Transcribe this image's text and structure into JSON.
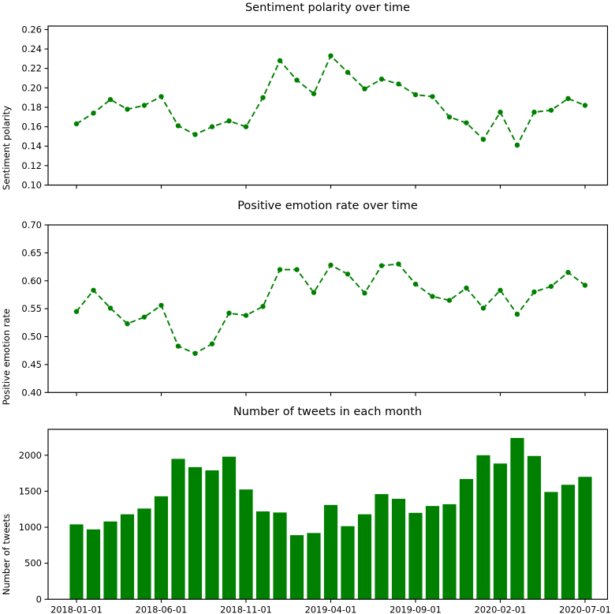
{
  "colors": {
    "series": "#008000",
    "axis": "#000000",
    "text": "#000000"
  },
  "months": [
    "2018-01",
    "2018-02",
    "2018-03",
    "2018-04",
    "2018-05",
    "2018-06",
    "2018-07",
    "2018-08",
    "2018-09",
    "2018-10",
    "2018-11",
    "2018-12",
    "2019-01",
    "2019-02",
    "2019-03",
    "2019-04",
    "2019-05",
    "2019-06",
    "2019-07",
    "2019-08",
    "2019-09",
    "2019-10",
    "2019-11",
    "2019-12",
    "2020-01",
    "2020-02",
    "2020-03",
    "2020-04",
    "2020-05",
    "2020-06",
    "2020-07"
  ],
  "x_ticks": {
    "positions": [
      0,
      5,
      10,
      15,
      20,
      25,
      30
    ],
    "labels": [
      "2018-01-01",
      "2018-06-01",
      "2018-11-01",
      "2019-04-01",
      "2019-09-01",
      "2020-02-01",
      "2020-07-01"
    ]
  },
  "chart_data": [
    {
      "type": "line",
      "title": "Sentiment polarity over time",
      "ylabel": "Sentiment polarity",
      "line_style": "dashed",
      "marker": "circle",
      "color": "#008000",
      "ylim": [
        0.1,
        0.2636
      ],
      "ytick_values": [
        0.1,
        0.12,
        0.14,
        0.16,
        0.18,
        0.2,
        0.22,
        0.24,
        0.26
      ],
      "ytick_labels": [
        "0.10",
        "0.12",
        "0.14",
        "0.16",
        "0.18",
        "0.20",
        "0.22",
        "0.24",
        "0.26"
      ],
      "x_labels_visible": false,
      "values": [
        0.163,
        0.174,
        0.188,
        0.178,
        0.182,
        0.191,
        0.161,
        0.152,
        0.16,
        0.166,
        0.16,
        0.19,
        0.228,
        0.208,
        0.194,
        0.233,
        0.216,
        0.199,
        0.209,
        0.204,
        0.193,
        0.191,
        0.17,
        0.164,
        0.147,
        0.175,
        0.141,
        0.175,
        0.177,
        0.189,
        0.182
      ]
    },
    {
      "type": "line",
      "title": "Positive emotion rate over time",
      "ylabel": "Positive emotion rate",
      "line_style": "dashed",
      "marker": "circle",
      "color": "#008000",
      "ylim": [
        0.4,
        0.7
      ],
      "ytick_values": [
        0.4,
        0.45,
        0.5,
        0.55,
        0.6,
        0.65,
        0.7
      ],
      "ytick_labels": [
        "0.40",
        "0.45",
        "0.50",
        "0.55",
        "0.60",
        "0.65",
        "0.70"
      ],
      "x_labels_visible": false,
      "values": [
        0.545,
        0.583,
        0.551,
        0.523,
        0.535,
        0.556,
        0.483,
        0.47,
        0.487,
        0.542,
        0.538,
        0.554,
        0.62,
        0.62,
        0.579,
        0.628,
        0.612,
        0.578,
        0.627,
        0.63,
        0.594,
        0.572,
        0.565,
        0.587,
        0.551,
        0.583,
        0.54,
        0.58,
        0.59,
        0.615,
        0.592
      ]
    },
    {
      "type": "bar",
      "title": "Number of tweets in each month",
      "ylabel": "Number of tweets",
      "color": "#008000",
      "ylim": [
        0,
        2360
      ],
      "ytick_values": [
        0,
        500,
        1000,
        1500,
        2000
      ],
      "ytick_labels": [
        "0",
        "500",
        "1000",
        "1500",
        "2000"
      ],
      "x_labels_visible": true,
      "values": [
        1040,
        970,
        1080,
        1180,
        1260,
        1430,
        1950,
        1835,
        1790,
        1980,
        1525,
        1220,
        1205,
        890,
        920,
        1310,
        1015,
        1180,
        1460,
        1395,
        1200,
        1295,
        1320,
        1670,
        2000,
        1885,
        2240,
        1990,
        1490,
        1590,
        1700
      ]
    }
  ]
}
